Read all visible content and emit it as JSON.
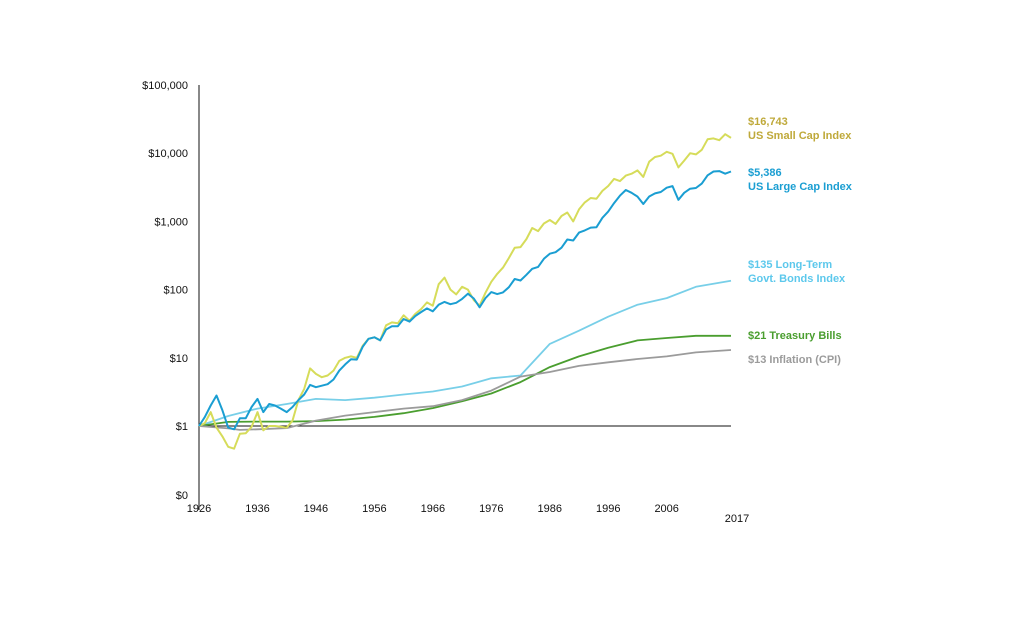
{
  "chart_data": {
    "type": "line",
    "title": "",
    "xlabel": "",
    "ylabel": "",
    "y_scale": "log",
    "xlim": [
      1926,
      2017
    ],
    "ylim": [
      0.01,
      100000
    ],
    "grid": false,
    "legend": "end-of-line labels at right",
    "y_ticks": [
      {
        "value": 0.01,
        "label": "$0"
      },
      {
        "value": 1,
        "label": "$1"
      },
      {
        "value": 10,
        "label": "$10"
      },
      {
        "value": 100,
        "label": "$100"
      },
      {
        "value": 1000,
        "label": "$1,000"
      },
      {
        "value": 10000,
        "label": "$10,000"
      },
      {
        "value": 100000,
        "label": "$100,000"
      }
    ],
    "x_ticks": [
      {
        "value": 1926,
        "label": "1926"
      },
      {
        "value": 1936,
        "label": "1936"
      },
      {
        "value": 1946,
        "label": "1946"
      },
      {
        "value": 1956,
        "label": "1956"
      },
      {
        "value": 1966,
        "label": "1966"
      },
      {
        "value": 1976,
        "label": "1976"
      },
      {
        "value": 1986,
        "label": "1986"
      },
      {
        "value": 1996,
        "label": "1996"
      },
      {
        "value": 2006,
        "label": "2006"
      },
      {
        "value": 2017,
        "label": "2017"
      }
    ],
    "series": [
      {
        "label_value": "$16,743",
        "label_name": "US Small Cap Index",
        "color": "#d6dc5a",
        "label_color": "#bfa93a",
        "x": [
          1926,
          1927,
          1928,
          1929,
          1930,
          1931,
          1932,
          1933,
          1934,
          1935,
          1936,
          1937,
          1938,
          1939,
          1940,
          1941,
          1942,
          1943,
          1944,
          1945,
          1946,
          1947,
          1948,
          1949,
          1950,
          1951,
          1952,
          1953,
          1954,
          1955,
          1956,
          1957,
          1958,
          1959,
          1960,
          1961,
          1962,
          1963,
          1964,
          1965,
          1966,
          1967,
          1968,
          1969,
          1970,
          1971,
          1972,
          1973,
          1974,
          1975,
          1976,
          1977,
          1978,
          1979,
          1980,
          1981,
          1982,
          1983,
          1984,
          1985,
          1986,
          1987,
          1988,
          1989,
          1990,
          1991,
          1992,
          1993,
          1994,
          1995,
          1996,
          1997,
          1998,
          1999,
          2000,
          2001,
          2002,
          2003,
          2004,
          2005,
          2006,
          2007,
          2008,
          2009,
          2010,
          2011,
          2012,
          2013,
          2014,
          2015,
          2016,
          2017
        ],
        "y": [
          1,
          1.1,
          1.6,
          0.9,
          0.5,
          0.25,
          0.22,
          0.6,
          0.62,
          0.95,
          1.6,
          0.75,
          1.0,
          1.0,
          0.95,
          0.9,
          1.2,
          2.4,
          3.5,
          7.0,
          5.8,
          5.2,
          5.5,
          6.5,
          9.0,
          10.0,
          10.5,
          10.0,
          15.0,
          19.0,
          20.0,
          18.0,
          30.0,
          33.0,
          32.0,
          42.0,
          35.0,
          44.0,
          52.0,
          65.0,
          58.0,
          120.0,
          150.0,
          100.0,
          85.0,
          110.0,
          100.0,
          70.0,
          58.0,
          90.0,
          130.0,
          170.0,
          210.0,
          290.0,
          410.0,
          420.0,
          550.0,
          800.0,
          720.0,
          930.0,
          1050.0,
          920.0,
          1200.0,
          1350.0,
          1000.0,
          1500.0,
          1900.0,
          2200.0,
          2150.0,
          2800.0,
          3300.0,
          4200.0,
          3900.0,
          4700.0,
          5000.0,
          5600.0,
          4500.0,
          7500.0,
          8800.0,
          9200.0,
          10500.0,
          9800.0,
          6200.0,
          7800.0,
          10000.0,
          9600.0,
          11200.0,
          16000.0,
          16500.0,
          15500.0,
          19000.0,
          16743.0
        ]
      },
      {
        "label_value": "$5,386",
        "label_name": "US Large Cap Index",
        "color": "#1a9ed2",
        "label_color": "#1a9ed2",
        "x": [
          1926,
          1927,
          1928,
          1929,
          1930,
          1931,
          1932,
          1933,
          1934,
          1935,
          1936,
          1937,
          1938,
          1939,
          1940,
          1941,
          1942,
          1943,
          1944,
          1945,
          1946,
          1947,
          1948,
          1949,
          1950,
          1951,
          1952,
          1953,
          1954,
          1955,
          1956,
          1957,
          1958,
          1959,
          1960,
          1961,
          1962,
          1963,
          1964,
          1965,
          1966,
          1967,
          1968,
          1969,
          1970,
          1971,
          1972,
          1973,
          1974,
          1975,
          1976,
          1977,
          1978,
          1979,
          1980,
          1981,
          1982,
          1983,
          1984,
          1985,
          1986,
          1987,
          1988,
          1989,
          1990,
          1991,
          1992,
          1993,
          1994,
          1995,
          1996,
          1997,
          1998,
          1999,
          2000,
          2001,
          2002,
          2003,
          2004,
          2005,
          2006,
          2007,
          2008,
          2009,
          2010,
          2011,
          2012,
          2013,
          2014,
          2015,
          2016,
          2017
        ],
        "y": [
          1,
          1.35,
          2.0,
          2.8,
          1.7,
          0.9,
          0.8,
          1.3,
          1.3,
          1.9,
          2.5,
          1.6,
          2.1,
          2.0,
          1.8,
          1.6,
          1.9,
          2.4,
          2.9,
          4.0,
          3.7,
          3.9,
          4.1,
          4.8,
          6.5,
          8.0,
          9.5,
          9.4,
          14.5,
          19.0,
          20.0,
          18.0,
          26.0,
          29.0,
          29.0,
          37.0,
          34.0,
          41.0,
          47.0,
          53.0,
          48.0,
          60.0,
          66.0,
          61.0,
          64.0,
          73.0,
          87.0,
          74.0,
          55.0,
          75.0,
          92.0,
          86.0,
          91.0,
          108.0,
          143.0,
          136.0,
          165.0,
          202.0,
          215.0,
          283.0,
          336.0,
          354.0,
          412.0,
          542.0,
          525.0,
          686.0,
          739.0,
          812.0,
          823.0,
          1131.0,
          1391.0,
          1855.0,
          2385.0,
          2887.0,
          2624.0,
          2312.0,
          1801.0,
          2318.0,
          2570.0,
          2697.0,
          3123.0,
          3294.0,
          2076.0,
          2625.0,
          3020.0,
          3084.0,
          3578.0,
          4737.0,
          5385.0,
          5459.0,
          5000.0,
          5386.0
        ]
      },
      {
        "label_value": "$135 Long-Term",
        "label_name": "Govt. Bonds Index",
        "color": "#78cfe8",
        "label_color": "#5cc8ec",
        "x": [
          1926,
          1931,
          1936,
          1941,
          1946,
          1951,
          1956,
          1961,
          1966,
          1971,
          1976,
          1981,
          1986,
          1991,
          1996,
          2001,
          2006,
          2011,
          2017
        ],
        "y": [
          1,
          1.4,
          1.8,
          2.1,
          2.5,
          2.4,
          2.6,
          2.9,
          3.2,
          3.8,
          5.0,
          5.5,
          16.0,
          25.0,
          40.0,
          60.0,
          75.0,
          110.0,
          135.0
        ]
      },
      {
        "label_value": "$21 Treasury Bills",
        "label_name": "",
        "color": "#4a9e2f",
        "label_color": "#4a9e2f",
        "x": [
          1926,
          1931,
          1936,
          1941,
          1946,
          1951,
          1956,
          1961,
          1966,
          1971,
          1976,
          1981,
          1986,
          1991,
          1996,
          2001,
          2006,
          2011,
          2017
        ],
        "y": [
          1,
          1.15,
          1.16,
          1.16,
          1.18,
          1.24,
          1.36,
          1.54,
          1.83,
          2.3,
          3.0,
          4.4,
          7.3,
          10.5,
          14.0,
          18.0,
          19.5,
          21.0,
          21.0
        ]
      },
      {
        "label_value": "$13 Inflation (CPI)",
        "label_name": "",
        "color": "#9b9b9b",
        "label_color": "#9b9b9b",
        "x": [
          1926,
          1931,
          1933,
          1936,
          1941,
          1946,
          1951,
          1956,
          1961,
          1966,
          1971,
          1976,
          1981,
          1986,
          1991,
          1996,
          2001,
          2006,
          2011,
          2017
        ],
        "y": [
          1,
          0.85,
          0.77,
          0.8,
          0.87,
          1.2,
          1.42,
          1.6,
          1.8,
          1.95,
          2.4,
          3.3,
          5.3,
          6.2,
          7.6,
          8.6,
          9.6,
          10.5,
          12.0,
          13.0
        ]
      }
    ]
  }
}
